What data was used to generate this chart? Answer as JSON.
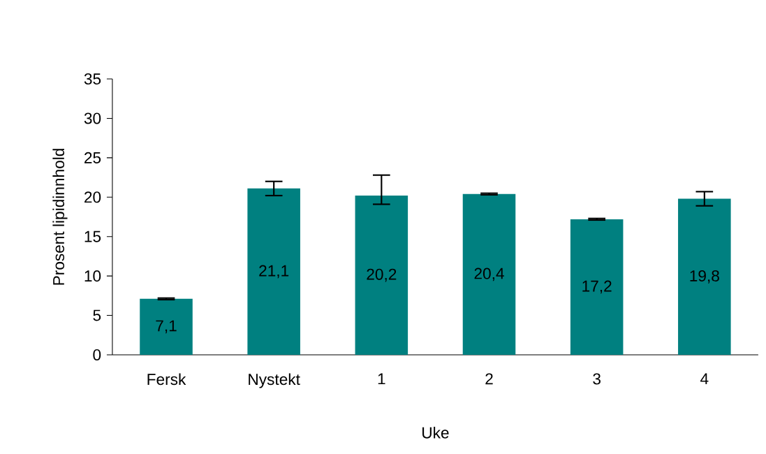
{
  "chart_data": {
    "type": "bar",
    "xlabel": "Uke",
    "ylabel": "Prosent lipidinnhold",
    "categories": [
      "Fersk",
      "Nystekt",
      "1",
      "2",
      "3",
      "4"
    ],
    "values": [
      7.1,
      21.1,
      20.2,
      20.4,
      17.2,
      19.8
    ],
    "errors": [
      0.1,
      0.9,
      [
        19.1,
        22.8
      ],
      0.1,
      0.1,
      0.9
    ],
    "value_labels": [
      "7,1",
      "21,1",
      "20,2",
      "20,4",
      "17,2",
      "19,8"
    ],
    "color": "#008080",
    "ylim": [
      0,
      35
    ],
    "yticks": [
      0,
      5,
      10,
      15,
      20,
      25,
      30,
      35
    ],
    "grid": false
  }
}
